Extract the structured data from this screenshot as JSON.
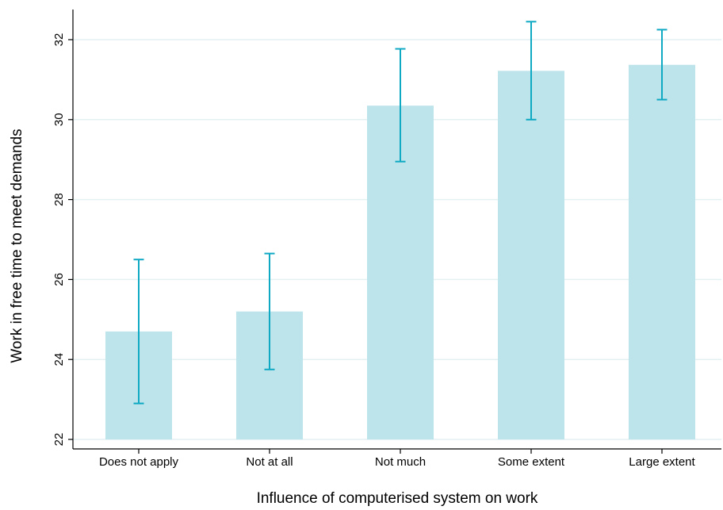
{
  "chart_data": {
    "type": "bar",
    "categories": [
      "Does not apply",
      "Not at all",
      "Not much",
      "Some extent",
      "Large extent"
    ],
    "values": [
      24.7,
      25.2,
      30.35,
      31.22,
      31.37
    ],
    "error_low": [
      22.9,
      23.75,
      28.95,
      30.0,
      30.5
    ],
    "error_high": [
      26.5,
      26.65,
      31.77,
      32.45,
      32.25
    ],
    "xlabel": "Influence of computerised system on work",
    "ylabel": "Work in free time to meet demands",
    "ylim": [
      22,
      32.8
    ],
    "yticks": [
      22,
      24,
      26,
      28,
      30,
      32
    ],
    "grid": true,
    "colors": {
      "bar": "#bde4ea",
      "errorbar": "#10a9c4",
      "grid": "#e4f1f3",
      "axis": "#000000"
    }
  }
}
